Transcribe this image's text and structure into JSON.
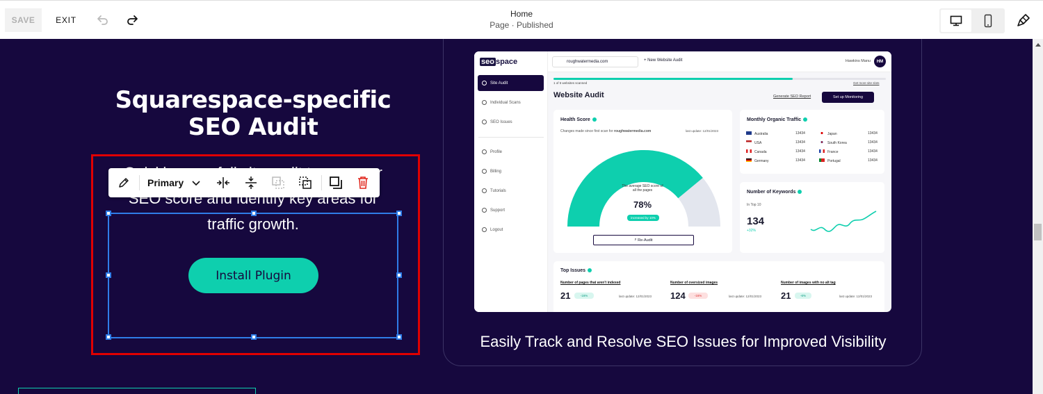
{
  "topbar": {
    "save_label": "SAVE",
    "exit_label": "EXIT",
    "page_title": "Home",
    "page_status": "Page · Published"
  },
  "section": {
    "heading_line1": "Squarespace-specific",
    "heading_line2": "SEO Audit",
    "body_line1": "Quickly run a full site audit to see your",
    "body_line2": "SEO score and identify key areas for",
    "body_line3": "traffic growth.",
    "button_label": "Install Plugin",
    "caption": "Easily Track and Resolve SEO Issues for Improved Visibility"
  },
  "block_toolbar": {
    "style_label": "Primary"
  },
  "dashboard": {
    "logo_box": "seo",
    "logo_rest": "space",
    "nav": [
      "Site Audit",
      "Individual Scans",
      "SEO Issues",
      "Profile",
      "Billing",
      "Tutorials",
      "Support",
      "Logout"
    ],
    "domain": "roughwatermedia.com",
    "new_audit": "New Website Audit",
    "user_name": "Hawkins Manu",
    "user_initials": "HM",
    "scan_count": "1 of 5 websites scanned",
    "more_slots": "Get more site slots",
    "title": "Website Audit",
    "generate_report": "Generate SEO Report",
    "monitoring": "Set up Monitoring",
    "health": {
      "title": "Health Score",
      "changes": "Changes made since first scan for",
      "domain": "roughwatermedia.com",
      "last_update": "last update: 12/01/2023",
      "avg_line1": "The average SEO score of",
      "avg_line2": "all the pages",
      "score": "78%",
      "score_value": 0.78,
      "increase": "increased by 10%",
      "reaudit": "Re-Audit"
    },
    "traffic": {
      "title": "Monthly Organic Traffic",
      "left": [
        {
          "country": "Australia",
          "value": "13434"
        },
        {
          "country": "USA",
          "value": "13434"
        },
        {
          "country": "Canada",
          "value": "13434"
        },
        {
          "country": "Germany",
          "value": "13434"
        }
      ],
      "right": [
        {
          "country": "Japan",
          "value": "13434"
        },
        {
          "country": "South Korea",
          "value": "13434"
        },
        {
          "country": "France",
          "value": "13434"
        },
        {
          "country": "Portugal",
          "value": "13434"
        }
      ]
    },
    "keywords": {
      "title": "Number of Keywords",
      "sub": "In Top 10",
      "value": "134",
      "delta": "+32%"
    },
    "issues": {
      "title": "Top Issues",
      "items": [
        {
          "label": "Number of pages that aren't indexed",
          "value": "21",
          "badge": "-16%",
          "date": "last update: 12/01/2023"
        },
        {
          "label": "Number of oversized images",
          "value": "124",
          "badge": "-16%",
          "date": "last update: 12/01/2023"
        },
        {
          "label": "Number of images with no alt tag",
          "value": "21",
          "badge": "-6%",
          "date": "last update: 12/01/2023"
        }
      ]
    }
  },
  "colors": {
    "background": "#16083e",
    "accent": "#0ecfae",
    "selection": "#2f7de8",
    "highlight": "#e00000"
  }
}
